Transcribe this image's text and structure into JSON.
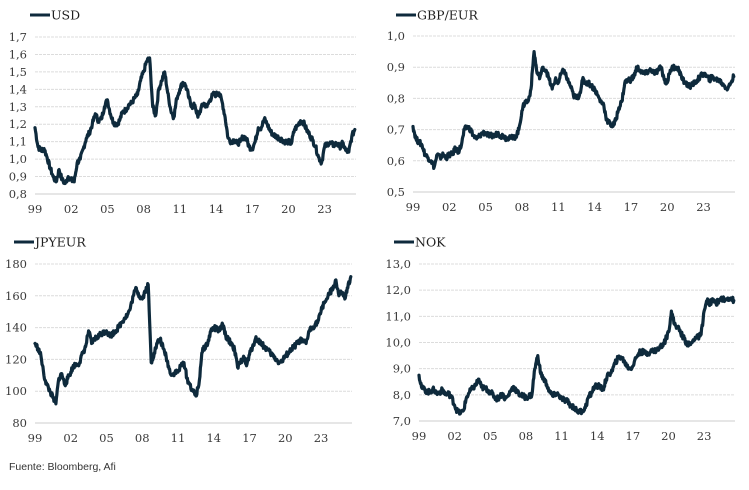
{
  "source_note": "Fuente: Bloomberg, Afi",
  "chart_data": [
    {
      "type": "line",
      "id": "usd",
      "legend": "USD",
      "title": "",
      "xlabel": "",
      "ylabel": "",
      "xlim": [
        1999,
        2025.6
      ],
      "ylim": [
        0.8,
        1.7
      ],
      "yticks": [
        0.8,
        0.9,
        1.0,
        1.1,
        1.2,
        1.3,
        1.4,
        1.5,
        1.6,
        1.7
      ],
      "ytick_labels": [
        "0,8",
        "0,9",
        "1,0",
        "1,1",
        "1,2",
        "1,3",
        "1,4",
        "1,5",
        "1,6",
        "1,7"
      ],
      "xticks": [
        1999,
        2002,
        2005,
        2008,
        2011,
        2014,
        2017,
        2020,
        2023
      ],
      "xtick_labels": [
        "99",
        "02",
        "05",
        "08",
        "11",
        "14",
        "17",
        "20",
        "23"
      ],
      "grid": true,
      "legend_position": "top-left",
      "color": "#0e2a3c",
      "x": [
        1999.0,
        1999.25,
        1999.5,
        1999.75,
        2000.0,
        2000.25,
        2000.5,
        2000.75,
        2001.0,
        2001.25,
        2001.5,
        2001.75,
        2002.0,
        2002.25,
        2002.5,
        2002.75,
        2003.0,
        2003.25,
        2003.5,
        2003.75,
        2004.0,
        2004.25,
        2004.5,
        2004.75,
        2005.0,
        2005.25,
        2005.5,
        2005.75,
        2006.0,
        2006.25,
        2006.5,
        2006.75,
        2007.0,
        2007.25,
        2007.5,
        2007.75,
        2008.0,
        2008.25,
        2008.5,
        2008.75,
        2009.0,
        2009.25,
        2009.5,
        2009.75,
        2010.0,
        2010.25,
        2010.5,
        2010.75,
        2011.0,
        2011.25,
        2011.5,
        2011.75,
        2012.0,
        2012.25,
        2012.5,
        2012.75,
        2013.0,
        2013.25,
        2013.5,
        2013.75,
        2014.0,
        2014.25,
        2014.5,
        2014.75,
        2015.0,
        2015.25,
        2015.5,
        2015.75,
        2016.0,
        2016.25,
        2016.5,
        2016.75,
        2017.0,
        2017.25,
        2017.5,
        2017.75,
        2018.0,
        2018.25,
        2018.5,
        2018.75,
        2019.0,
        2019.25,
        2019.5,
        2019.75,
        2020.0,
        2020.25,
        2020.5,
        2020.75,
        2021.0,
        2021.25,
        2021.5,
        2021.75,
        2022.0,
        2022.25,
        2022.5,
        2022.75,
        2023.0,
        2023.25,
        2023.5,
        2023.75,
        2024.0,
        2024.25,
        2024.5,
        2024.75,
        2025.0,
        2025.25,
        2025.5
      ],
      "values": [
        1.18,
        1.07,
        1.05,
        1.06,
        1.01,
        0.95,
        0.9,
        0.87,
        0.94,
        0.88,
        0.86,
        0.9,
        0.88,
        0.87,
        0.98,
        1.0,
        1.06,
        1.12,
        1.15,
        1.2,
        1.26,
        1.22,
        1.23,
        1.3,
        1.34,
        1.26,
        1.21,
        1.2,
        1.22,
        1.27,
        1.28,
        1.31,
        1.32,
        1.35,
        1.37,
        1.45,
        1.5,
        1.56,
        1.58,
        1.3,
        1.25,
        1.4,
        1.45,
        1.5,
        1.38,
        1.28,
        1.24,
        1.35,
        1.4,
        1.44,
        1.42,
        1.35,
        1.3,
        1.31,
        1.24,
        1.29,
        1.32,
        1.3,
        1.34,
        1.37,
        1.37,
        1.38,
        1.33,
        1.24,
        1.12,
        1.1,
        1.11,
        1.09,
        1.1,
        1.13,
        1.12,
        1.07,
        1.06,
        1.1,
        1.18,
        1.18,
        1.23,
        1.2,
        1.16,
        1.14,
        1.13,
        1.12,
        1.11,
        1.1,
        1.1,
        1.09,
        1.17,
        1.19,
        1.22,
        1.21,
        1.17,
        1.14,
        1.11,
        1.07,
        1.01,
        0.98,
        1.07,
        1.09,
        1.09,
        1.08,
        1.09,
        1.07,
        1.09,
        1.05,
        1.04,
        1.13,
        1.17
      ]
    },
    {
      "type": "line",
      "id": "gbpeur",
      "legend": "GBP/EUR",
      "title": "",
      "xlabel": "",
      "ylabel": "",
      "xlim": [
        1999,
        2025.6
      ],
      "ylim": [
        0.5,
        1.0
      ],
      "yticks": [
        0.5,
        0.6,
        0.7,
        0.8,
        0.9,
        1.0
      ],
      "ytick_labels": [
        "0,5",
        "0,6",
        "0,7",
        "0,8",
        "0,9",
        "1,0"
      ],
      "xticks": [
        1999,
        2002,
        2005,
        2008,
        2011,
        2014,
        2017,
        2020,
        2023
      ],
      "xtick_labels": [
        "99",
        "02",
        "05",
        "08",
        "11",
        "14",
        "17",
        "20",
        "23"
      ],
      "grid": true,
      "legend_position": "top-left",
      "color": "#0e2a3c",
      "x": [
        1999.0,
        1999.25,
        1999.5,
        1999.75,
        2000.0,
        2000.25,
        2000.5,
        2000.75,
        2001.0,
        2001.25,
        2001.5,
        2001.75,
        2002.0,
        2002.25,
        2002.5,
        2002.75,
        2003.0,
        2003.25,
        2003.5,
        2003.75,
        2004.0,
        2004.25,
        2004.5,
        2004.75,
        2005.0,
        2005.25,
        2005.5,
        2005.75,
        2006.0,
        2006.25,
        2006.5,
        2006.75,
        2007.0,
        2007.25,
        2007.5,
        2007.75,
        2008.0,
        2008.25,
        2008.5,
        2008.75,
        2009.0,
        2009.25,
        2009.5,
        2009.75,
        2010.0,
        2010.25,
        2010.5,
        2010.75,
        2011.0,
        2011.25,
        2011.5,
        2011.75,
        2012.0,
        2012.25,
        2012.5,
        2012.75,
        2013.0,
        2013.25,
        2013.5,
        2013.75,
        2014.0,
        2014.25,
        2014.5,
        2014.75,
        2015.0,
        2015.25,
        2015.5,
        2015.75,
        2016.0,
        2016.25,
        2016.5,
        2016.75,
        2017.0,
        2017.25,
        2017.5,
        2017.75,
        2018.0,
        2018.25,
        2018.5,
        2018.75,
        2019.0,
        2019.25,
        2019.5,
        2019.75,
        2020.0,
        2020.25,
        2020.5,
        2020.75,
        2021.0,
        2021.25,
        2021.5,
        2021.75,
        2022.0,
        2022.25,
        2022.5,
        2022.75,
        2023.0,
        2023.25,
        2023.5,
        2023.75,
        2024.0,
        2024.25,
        2024.5,
        2024.75,
        2025.0,
        2025.25,
        2025.5
      ],
      "values": [
        0.71,
        0.67,
        0.66,
        0.65,
        0.62,
        0.61,
        0.6,
        0.58,
        0.62,
        0.61,
        0.62,
        0.61,
        0.62,
        0.62,
        0.64,
        0.63,
        0.65,
        0.7,
        0.71,
        0.7,
        0.68,
        0.67,
        0.68,
        0.69,
        0.69,
        0.68,
        0.68,
        0.68,
        0.69,
        0.68,
        0.68,
        0.67,
        0.68,
        0.67,
        0.68,
        0.7,
        0.76,
        0.79,
        0.79,
        0.83,
        0.95,
        0.88,
        0.87,
        0.9,
        0.89,
        0.86,
        0.83,
        0.86,
        0.85,
        0.88,
        0.89,
        0.86,
        0.84,
        0.81,
        0.8,
        0.81,
        0.86,
        0.85,
        0.85,
        0.84,
        0.83,
        0.81,
        0.79,
        0.78,
        0.73,
        0.72,
        0.71,
        0.73,
        0.77,
        0.79,
        0.85,
        0.86,
        0.86,
        0.87,
        0.9,
        0.89,
        0.88,
        0.88,
        0.89,
        0.89,
        0.88,
        0.89,
        0.9,
        0.86,
        0.85,
        0.89,
        0.9,
        0.9,
        0.89,
        0.86,
        0.85,
        0.84,
        0.84,
        0.85,
        0.86,
        0.87,
        0.88,
        0.87,
        0.86,
        0.87,
        0.86,
        0.86,
        0.85,
        0.84,
        0.83,
        0.85,
        0.87
      ]
    },
    {
      "type": "line",
      "id": "jpyeur",
      "legend": "JPYEUR",
      "title": "",
      "xlabel": "",
      "ylabel": "",
      "xlim": [
        1999,
        2025.6
      ],
      "ylim": [
        80,
        180
      ],
      "yticks": [
        80,
        100,
        120,
        140,
        160,
        180
      ],
      "ytick_labels": [
        "80",
        "100",
        "120",
        "140",
        "160",
        "180"
      ],
      "xticks": [
        1999,
        2002,
        2005,
        2008,
        2011,
        2014,
        2017,
        2020,
        2023
      ],
      "xtick_labels": [
        "99",
        "02",
        "05",
        "08",
        "11",
        "14",
        "17",
        "20",
        "23"
      ],
      "grid": true,
      "legend_position": "top-left",
      "color": "#0e2a3c",
      "x": [
        1999.0,
        1999.25,
        1999.5,
        1999.75,
        2000.0,
        2000.25,
        2000.5,
        2000.75,
        2001.0,
        2001.25,
        2001.5,
        2001.75,
        2002.0,
        2002.25,
        2002.5,
        2002.75,
        2003.0,
        2003.25,
        2003.5,
        2003.75,
        2004.0,
        2004.25,
        2004.5,
        2004.75,
        2005.0,
        2005.25,
        2005.5,
        2005.75,
        2006.0,
        2006.25,
        2006.5,
        2006.75,
        2007.0,
        2007.25,
        2007.5,
        2007.75,
        2008.0,
        2008.25,
        2008.5,
        2008.75,
        2009.0,
        2009.25,
        2009.5,
        2009.75,
        2010.0,
        2010.25,
        2010.5,
        2010.75,
        2011.0,
        2011.25,
        2011.5,
        2011.75,
        2012.0,
        2012.25,
        2012.5,
        2012.75,
        2013.0,
        2013.25,
        2013.5,
        2013.75,
        2014.0,
        2014.25,
        2014.5,
        2014.75,
        2015.0,
        2015.25,
        2015.5,
        2015.75,
        2016.0,
        2016.25,
        2016.5,
        2016.75,
        2017.0,
        2017.25,
        2017.5,
        2017.75,
        2018.0,
        2018.25,
        2018.5,
        2018.75,
        2019.0,
        2019.25,
        2019.5,
        2019.75,
        2020.0,
        2020.25,
        2020.5,
        2020.75,
        2021.0,
        2021.25,
        2021.5,
        2021.75,
        2022.0,
        2022.25,
        2022.5,
        2022.75,
        2023.0,
        2023.25,
        2023.5,
        2023.75,
        2024.0,
        2024.25,
        2024.5,
        2024.75,
        2025.0,
        2025.25,
        2025.5
      ],
      "values": [
        130,
        127,
        122,
        110,
        104,
        100,
        96,
        92,
        108,
        111,
        104,
        108,
        112,
        116,
        117,
        118,
        124,
        128,
        138,
        130,
        133,
        134,
        136,
        137,
        138,
        135,
        136,
        138,
        140,
        143,
        146,
        148,
        152,
        160,
        165,
        160,
        158,
        163,
        167,
        118,
        124,
        130,
        133,
        127,
        122,
        114,
        110,
        112,
        112,
        116,
        118,
        108,
        104,
        100,
        97,
        104,
        124,
        128,
        130,
        138,
        140,
        139,
        138,
        142,
        135,
        132,
        130,
        126,
        115,
        118,
        122,
        116,
        123,
        128,
        133,
        132,
        130,
        128,
        126,
        124,
        122,
        120,
        118,
        119,
        122,
        124,
        126,
        128,
        130,
        132,
        131,
        130,
        138,
        140,
        142,
        144,
        150,
        156,
        158,
        162,
        164,
        170,
        160,
        162,
        158,
        165,
        172
      ]
    },
    {
      "type": "line",
      "id": "nok",
      "legend": "NOK",
      "title": "",
      "xlabel": "",
      "ylabel": "",
      "xlim": [
        1999,
        2025.6
      ],
      "ylim": [
        7.0,
        13.0
      ],
      "yticks": [
        7,
        8,
        9,
        10,
        11,
        12,
        13
      ],
      "ytick_labels": [
        "7,0",
        "8,0",
        "9,0",
        "10,0",
        "11,0",
        "12,0",
        "13,0"
      ],
      "xticks": [
        1999,
        2002,
        2005,
        2008,
        2011,
        2014,
        2017,
        2020,
        2023
      ],
      "xtick_labels": [
        "99",
        "02",
        "05",
        "08",
        "11",
        "14",
        "17",
        "20",
        "23"
      ],
      "grid": true,
      "legend_position": "top-left",
      "color": "#0e2a3c",
      "x": [
        1999.0,
        1999.25,
        1999.5,
        1999.75,
        2000.0,
        2000.25,
        2000.5,
        2000.75,
        2001.0,
        2001.25,
        2001.5,
        2001.75,
        2002.0,
        2002.25,
        2002.5,
        2002.75,
        2003.0,
        2003.25,
        2003.5,
        2003.75,
        2004.0,
        2004.25,
        2004.5,
        2004.75,
        2005.0,
        2005.25,
        2005.5,
        2005.75,
        2006.0,
        2006.25,
        2006.5,
        2006.75,
        2007.0,
        2007.25,
        2007.5,
        2007.75,
        2008.0,
        2008.25,
        2008.5,
        2008.75,
        2009.0,
        2009.25,
        2009.5,
        2009.75,
        2010.0,
        2010.25,
        2010.5,
        2010.75,
        2011.0,
        2011.25,
        2011.5,
        2011.75,
        2012.0,
        2012.25,
        2012.5,
        2012.75,
        2013.0,
        2013.25,
        2013.5,
        2013.75,
        2014.0,
        2014.25,
        2014.5,
        2014.75,
        2015.0,
        2015.25,
        2015.5,
        2015.75,
        2016.0,
        2016.25,
        2016.5,
        2016.75,
        2017.0,
        2017.25,
        2017.5,
        2017.75,
        2018.0,
        2018.25,
        2018.5,
        2018.75,
        2019.0,
        2019.25,
        2019.5,
        2019.75,
        2020.0,
        2020.25,
        2020.5,
        2020.75,
        2021.0,
        2021.25,
        2021.5,
        2021.75,
        2022.0,
        2022.25,
        2022.5,
        2022.75,
        2023.0,
        2023.25,
        2023.5,
        2023.75,
        2024.0,
        2024.25,
        2024.5,
        2024.75,
        2025.0,
        2025.25,
        2025.5
      ],
      "values": [
        8.75,
        8.25,
        8.2,
        8.1,
        8.15,
        8.2,
        8.05,
        8.1,
        8.2,
        8.0,
        8.05,
        7.9,
        7.6,
        7.35,
        7.3,
        7.4,
        7.9,
        8.1,
        8.25,
        8.35,
        8.6,
        8.3,
        8.25,
        8.2,
        8.1,
        8.0,
        7.85,
        7.9,
        8.05,
        7.85,
        7.95,
        8.2,
        8.3,
        8.1,
        8.0,
        7.95,
        7.9,
        7.95,
        8.0,
        9.0,
        9.5,
        8.8,
        8.6,
        8.4,
        8.1,
        7.95,
        8.05,
        8.0,
        7.85,
        7.8,
        7.75,
        7.6,
        7.55,
        7.4,
        7.35,
        7.4,
        7.5,
        7.9,
        8.05,
        8.3,
        8.35,
        8.3,
        8.2,
        8.6,
        8.8,
        8.9,
        9.2,
        9.4,
        9.45,
        9.3,
        9.1,
        9.0,
        9.1,
        9.4,
        9.6,
        9.65,
        9.6,
        9.6,
        9.65,
        9.7,
        9.7,
        9.8,
        9.9,
        10.1,
        10.4,
        11.2,
        10.7,
        10.6,
        10.4,
        10.2,
        10.0,
        9.9,
        10.0,
        10.2,
        10.2,
        10.3,
        11.2,
        11.6,
        11.5,
        11.6,
        11.5,
        11.6,
        11.7,
        11.6,
        11.7,
        11.7,
        11.6
      ]
    }
  ]
}
